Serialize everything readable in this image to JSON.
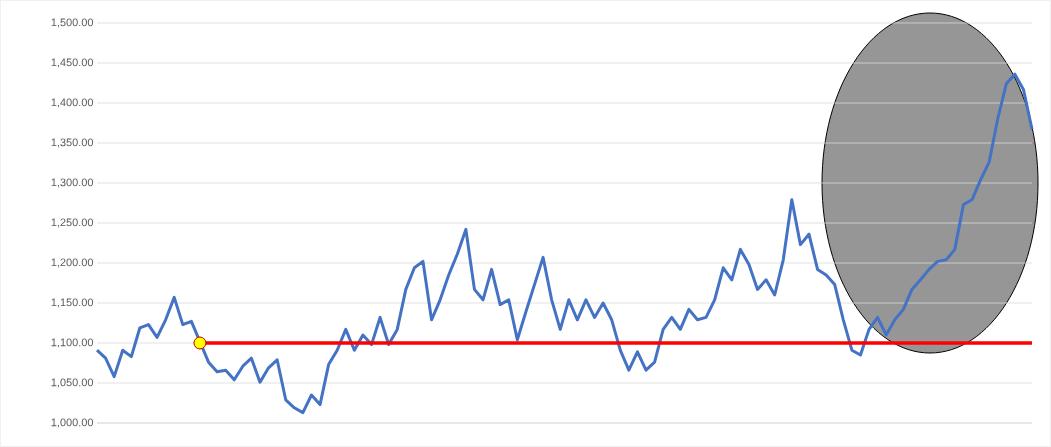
{
  "chart_data": {
    "type": "line",
    "categories": [
      null,
      null,
      null,
      null,
      null,
      null,
      null,
      null,
      null,
      null,
      null,
      null,
      null,
      null,
      null,
      null,
      null,
      null,
      null,
      null,
      null,
      null,
      null,
      null,
      null,
      null,
      null,
      null,
      null,
      null,
      null,
      null,
      null,
      null,
      null,
      null,
      null,
      null,
      null,
      null,
      null,
      null,
      null,
      null,
      null,
      null,
      null,
      null,
      null,
      null,
      null,
      null,
      null,
      null,
      null,
      null,
      null,
      null,
      null,
      null,
      null,
      null,
      null,
      null,
      null,
      null,
      null,
      null,
      null,
      null,
      null,
      null,
      null,
      null,
      null,
      null,
      null,
      null,
      null,
      null,
      null,
      null,
      null,
      null,
      null,
      null,
      null,
      null,
      null,
      null,
      null,
      null,
      null,
      null,
      null,
      null,
      null,
      null,
      null,
      null,
      null,
      null,
      null,
      null,
      null,
      null,
      null,
      null,
      null,
      null
    ],
    "ylim": [
      1000,
      1500
    ],
    "yticks": [
      {
        "value": 1000,
        "label": "1,000.00"
      },
      {
        "value": 1050,
        "label": "1,050.00"
      },
      {
        "value": 1100,
        "label": "1,100.00"
      },
      {
        "value": 1150,
        "label": "1,150.00"
      },
      {
        "value": 1200,
        "label": "1,200.00"
      },
      {
        "value": 1250,
        "label": "1,250.00"
      },
      {
        "value": 1300,
        "label": "1,300.00"
      },
      {
        "value": 1350,
        "label": "1,350.00"
      },
      {
        "value": 1400,
        "label": "1,400.00"
      },
      {
        "value": 1450,
        "label": "1,450.00"
      },
      {
        "value": 1500,
        "label": "1,500.00"
      }
    ],
    "tick_labels": "y",
    "grid": "y",
    "series": [
      {
        "color": "#4472c4",
        "values": [
          1091,
          1081,
          1058,
          1091,
          1083,
          1119,
          1123,
          1107,
          1129,
          1157,
          1123,
          1127,
          null,
          1076,
          1064,
          1066,
          1054,
          1071,
          1081,
          1051,
          1069,
          1079,
          1029,
          1019,
          1013,
          1035,
          1023,
          1073,
          1091,
          1117,
          1091,
          1110,
          1098,
          1132,
          1098,
          1117,
          1167,
          1194,
          1202,
          1129,
          1154,
          1185,
          1211,
          1242,
          1167,
          1154,
          1192,
          1148,
          1154,
          1104,
          1139,
          1173,
          1207,
          1154,
          1117,
          1154,
          1129,
          1154,
          1132,
          1150,
          1129,
          1091,
          1066,
          1089,
          1066,
          1076,
          1117,
          1132,
          1117,
          1142,
          1129,
          1132,
          1154,
          1194,
          1179,
          1217,
          1198,
          1167,
          1179,
          1160,
          1204,
          1279,
          1223,
          1236,
          1192,
          1185,
          1173,
          1129,
          1091,
          1085,
          1117,
          1132,
          1110,
          1129,
          1142,
          1167,
          1179,
          1192,
          1202,
          1204,
          1217,
          1273,
          1279,
          1304,
          1326,
          1380,
          1424,
          1436,
          1417,
          1367
        ]
      },
      {
        "color": "#ff0000",
        "values": [
          null,
          null,
          null,
          null,
          null,
          null,
          null,
          null,
          null,
          null,
          null,
          null,
          1100,
          1100,
          1100,
          1100,
          1100,
          1100,
          1100,
          1100,
          1100,
          1100,
          1100,
          1100,
          1100,
          1100,
          1100,
          1100,
          1100,
          1100,
          1100,
          1100,
          1100,
          1100,
          1100,
          1100,
          1100,
          1100,
          1100,
          1100,
          1100,
          1100,
          1100,
          1100,
          1100,
          1100,
          1100,
          1100,
          1100,
          1100,
          1100,
          1100,
          1100,
          1100,
          1100,
          1100,
          1100,
          1100,
          1100,
          1100,
          1100,
          1100,
          1100,
          1100,
          1100,
          1100,
          1100,
          1100,
          1100,
          1100,
          1100,
          1100,
          1100,
          1100,
          1100,
          1100,
          1100,
          1100,
          1100,
          1100,
          1100,
          1100,
          1100,
          1100,
          1100,
          1100,
          1100,
          1100,
          1100,
          1100,
          1100,
          1100,
          1100,
          1100,
          1100,
          1100,
          1100,
          1100,
          1100,
          1100,
          1100,
          1100,
          1100,
          1100,
          1100,
          1100,
          1100,
          1100,
          1100,
          1100
        ]
      },
      {
        "type": "scatter",
        "color": "#ffff00",
        "marker": "circle",
        "values": [
          null,
          null,
          null,
          null,
          null,
          null,
          null,
          null,
          null,
          null,
          null,
          null,
          1100,
          null,
          null,
          null,
          null,
          null,
          null,
          null,
          null,
          null,
          null,
          null,
          null,
          null,
          null,
          null,
          null,
          null,
          null,
          null,
          null,
          null,
          null,
          null,
          null,
          null,
          null,
          null,
          null,
          null,
          null,
          null,
          null,
          null,
          null,
          null,
          null,
          null,
          null,
          null,
          null,
          null,
          null,
          null,
          null,
          null,
          null,
          null,
          null,
          null,
          null,
          null,
          null,
          null,
          null,
          null,
          null,
          null,
          null,
          null,
          null,
          null,
          null,
          null,
          null,
          null,
          null,
          null,
          null,
          null,
          null,
          null,
          null,
          null,
          null,
          null,
          null,
          null,
          null,
          null,
          null,
          null,
          null,
          null,
          null,
          null,
          null,
          null,
          null,
          null,
          null,
          null,
          null,
          null,
          null,
          null,
          null,
          null
        ]
      }
    ]
  }
}
